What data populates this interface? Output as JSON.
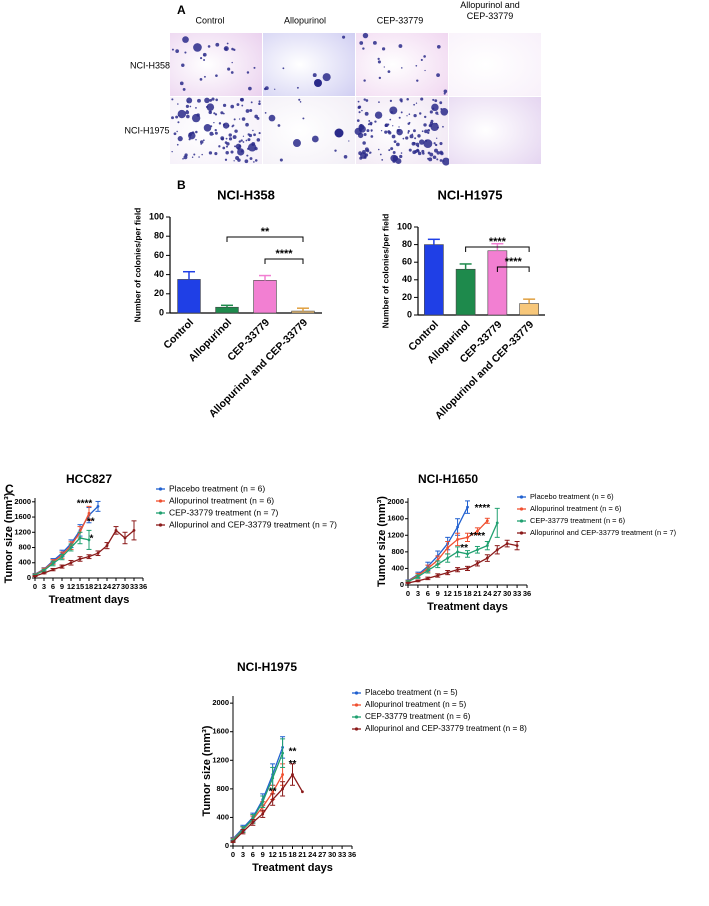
{
  "panel_a": {
    "panel": "A",
    "columns": [
      "Control",
      "Allopurinol",
      "CEP-33779",
      "Allopurinol and CEP-33779"
    ],
    "rows": [
      "NCI-H358",
      "NCI-H1975"
    ]
  },
  "chart_data": [
    {
      "type": "bar",
      "panel": "B",
      "title": "NCI-H358",
      "ylabel": "Number of colonies/per field",
      "categories": [
        "Control",
        "Allopurinol",
        "CEP-33779",
        "Allopurinol and CEP-33779"
      ],
      "values": [
        35,
        6,
        34,
        2
      ],
      "errors": [
        8,
        2,
        5,
        3
      ],
      "colors": [
        "#1f3fe6",
        "#1e8a4c",
        "#f27fd2",
        "#f7c77a"
      ],
      "ylim": [
        0,
        100
      ],
      "yticks": [
        0,
        20,
        40,
        60,
        80,
        100
      ],
      "annotations": [
        {
          "text": "**",
          "between": [
            "Allopurinol",
            "Allopurinol and CEP-33779"
          ]
        },
        {
          "text": "****",
          "between": [
            "CEP-33779",
            "Allopurinol and CEP-33779"
          ]
        }
      ]
    },
    {
      "type": "bar",
      "title": "NCI-H1975",
      "ylabel": "Number of colonies/per field",
      "categories": [
        "Control",
        "Allopurinol",
        "CEP-33779",
        "Allopurinol and CEP-33779"
      ],
      "values": [
        80,
        52,
        73,
        13
      ],
      "errors": [
        6,
        6,
        8,
        5
      ],
      "colors": [
        "#1f3fe6",
        "#1e8a4c",
        "#f27fd2",
        "#f7c77a"
      ],
      "ylim": [
        0,
        100
      ],
      "yticks": [
        0,
        20,
        40,
        60,
        80,
        100
      ],
      "annotations": [
        {
          "text": "****",
          "between": [
            "Allopurinol",
            "Allopurinol and CEP-33779"
          ]
        },
        {
          "text": "****",
          "between": [
            "CEP-33779",
            "Allopurinol and CEP-33779"
          ]
        }
      ]
    },
    {
      "type": "line",
      "panel": "C",
      "title": "HCC827",
      "xlabel": "Treatment days",
      "ylabel": "Tumor size (mm³)",
      "x": [
        0,
        3,
        6,
        9,
        12,
        15,
        18,
        21,
        24,
        27,
        30,
        33
      ],
      "xlim": [
        0,
        36
      ],
      "xticks": [
        0,
        3,
        6,
        9,
        12,
        15,
        18,
        21,
        24,
        27,
        30,
        33,
        36
      ],
      "ylim": [
        0,
        2100
      ],
      "yticks": [
        0,
        400,
        800,
        1200,
        1600,
        2000
      ],
      "legend": "outside right",
      "series": [
        {
          "name": "Placebo treatment (n = 6)",
          "color": "#2060d0",
          "values": [
            100,
            230,
            450,
            650,
            900,
            1250,
            1650,
            1880,
            null,
            null,
            null,
            null
          ],
          "errors": [
            20,
            40,
            60,
            80,
            100,
            150,
            200,
            130,
            null,
            null,
            null,
            null
          ]
        },
        {
          "name": "Allopurinol treatment (n = 6)",
          "color": "#f05030",
          "values": [
            90,
            220,
            420,
            600,
            850,
            1200,
            1700,
            null,
            null,
            null,
            null,
            null
          ],
          "errors": [
            20,
            40,
            60,
            80,
            100,
            150,
            180,
            null,
            null,
            null,
            null,
            null
          ]
        },
        {
          "name": "CEP-33779 treatment (n = 7)",
          "color": "#20a070",
          "values": [
            80,
            200,
            380,
            550,
            800,
            1050,
            1000,
            null,
            null,
            null,
            null,
            null
          ],
          "errors": [
            20,
            30,
            60,
            70,
            90,
            150,
            250,
            null,
            null,
            null,
            null,
            null
          ]
        },
        {
          "name": "Allopurinol and CEP-33779 treatment (n = 7)",
          "color": "#8b1a1a",
          "values": [
            50,
            130,
            220,
            300,
            400,
            500,
            560,
            650,
            850,
            1250,
            1050,
            1250
          ],
          "errors": [
            10,
            20,
            30,
            40,
            60,
            60,
            50,
            60,
            80,
            100,
            150,
            250
          ]
        }
      ],
      "annotations": [
        "****",
        "**",
        "*"
      ]
    },
    {
      "type": "line",
      "title": "NCI-H1650",
      "xlabel": "Treatment days",
      "ylabel": "Tumor size (mm³)",
      "x": [
        0,
        3,
        6,
        9,
        12,
        15,
        18,
        21,
        24,
        27,
        30,
        33
      ],
      "xlim": [
        0,
        36
      ],
      "xticks": [
        0,
        3,
        6,
        9,
        12,
        15,
        18,
        21,
        24,
        27,
        30,
        33,
        36
      ],
      "ylim": [
        0,
        2100
      ],
      "yticks": [
        0,
        400,
        800,
        1200,
        1600,
        2000
      ],
      "legend": "outside right",
      "series": [
        {
          "name": "Placebo treatment (n = 6)",
          "color": "#2060d0",
          "values": [
            100,
            250,
            450,
            700,
            1000,
            1400,
            1880,
            null,
            null,
            null,
            null,
            null
          ],
          "errors": [
            20,
            60,
            100,
            120,
            150,
            200,
            150,
            null,
            null,
            null,
            null,
            null
          ]
        },
        {
          "name": "Allopurinol treatment (n = 6)",
          "color": "#f05030",
          "values": [
            90,
            230,
            400,
            600,
            900,
            1100,
            1150,
            1300,
            1550,
            null,
            null,
            null
          ],
          "errors": [
            20,
            50,
            80,
            100,
            150,
            150,
            100,
            80,
            60,
            null,
            null,
            null
          ]
        },
        {
          "name": "CEP-33779 treatment (n = 6)",
          "color": "#20a070",
          "values": [
            80,
            200,
            350,
            500,
            650,
            800,
            750,
            850,
            950,
            1500,
            null,
            null
          ],
          "errors": [
            20,
            40,
            60,
            80,
            100,
            120,
            80,
            80,
            100,
            350,
            null,
            null
          ]
        },
        {
          "name": "Allopurinol and CEP-33779 treatment (n = 7)",
          "color": "#8b1a1a",
          "values": [
            50,
            100,
            160,
            230,
            300,
            370,
            400,
            520,
            650,
            850,
            1000,
            950
          ],
          "errors": [
            10,
            20,
            30,
            40,
            50,
            50,
            50,
            60,
            80,
            100,
            80,
            100
          ]
        }
      ],
      "annotations": [
        "****",
        "****",
        "**"
      ]
    },
    {
      "type": "line",
      "title": "NCI-H1975",
      "xlabel": "Treatment days",
      "ylabel": "Tumor size (mm³)",
      "x": [
        0,
        3,
        6,
        9,
        12,
        15,
        18,
        21
      ],
      "xlim": [
        0,
        36
      ],
      "xticks": [
        0,
        3,
        6,
        9,
        12,
        15,
        18,
        21,
        24,
        27,
        30,
        33,
        36
      ],
      "ylim": [
        0,
        2100
      ],
      "yticks": [
        0,
        400,
        800,
        1200,
        1600,
        2000
      ],
      "legend": "outside right",
      "series": [
        {
          "name": "Placebo treatment (n = 5)",
          "color": "#2060d0",
          "values": [
            100,
            250,
            400,
            650,
            1000,
            1380,
            null,
            null
          ],
          "errors": [
            20,
            40,
            60,
            80,
            150,
            150,
            null,
            null
          ]
        },
        {
          "name": "Allopurinol treatment (n = 5)",
          "color": "#f05030",
          "values": [
            90,
            230,
            370,
            550,
            750,
            1000,
            null,
            null
          ],
          "errors": [
            20,
            40,
            50,
            70,
            100,
            150,
            null,
            null
          ]
        },
        {
          "name": "CEP-33779 treatment (n = 6)",
          "color": "#20a070",
          "values": [
            80,
            230,
            380,
            620,
            950,
            1300,
            null,
            null
          ],
          "errors": [
            20,
            40,
            60,
            80,
            150,
            200,
            null,
            null
          ]
        },
        {
          "name": "Allopurinol and CEP-33779 treatment (n = 8)",
          "color": "#8b1a1a",
          "values": [
            60,
            200,
            330,
            450,
            650,
            800,
            1000,
            760
          ],
          "errors": [
            10,
            30,
            40,
            50,
            80,
            100,
            150,
            null
          ]
        }
      ],
      "annotations": [
        "**",
        "**",
        "**"
      ]
    }
  ]
}
